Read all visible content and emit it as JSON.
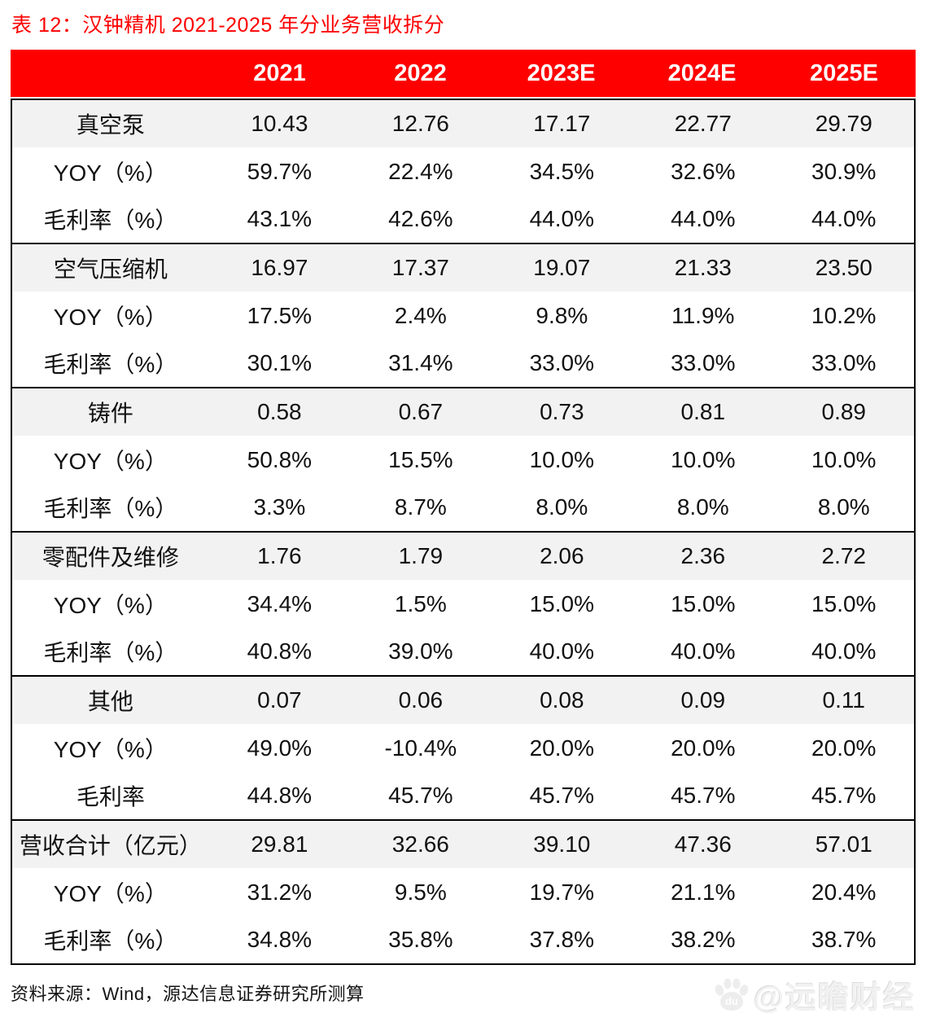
{
  "title": "表 12：汉钟精机 2021-2025 年分业务营收拆分",
  "source_note": "资料来源：Wind，源达信息证券研究所测算",
  "watermark": {
    "icon": "baidu-paw-icon",
    "handle": "@远瞻财经"
  },
  "colors": {
    "accent_red": "#fe0000",
    "header_text": "#ffffff",
    "category_row_bg": "#f2f2f2",
    "body_text": "#111111",
    "border": "#000000",
    "watermark_gray": "#f1f1f1"
  },
  "chart_data": {
    "type": "table",
    "title": "汉钟精机 2021-2025 年分业务营收拆分",
    "columns": [
      "2021",
      "2022",
      "2023E",
      "2024E",
      "2025E"
    ],
    "blocks": [
      {
        "rows": [
          {
            "label": "真空泵",
            "category": true,
            "values": [
              "10.43",
              "12.76",
              "17.17",
              "22.77",
              "29.79"
            ]
          },
          {
            "label": "YOY（%）",
            "category": false,
            "values": [
              "59.7%",
              "22.4%",
              "34.5%",
              "32.6%",
              "30.9%"
            ]
          },
          {
            "label": "毛利率（%）",
            "category": false,
            "values": [
              "43.1%",
              "42.6%",
              "44.0%",
              "44.0%",
              "44.0%"
            ]
          }
        ]
      },
      {
        "rows": [
          {
            "label": "空气压缩机",
            "category": true,
            "values": [
              "16.97",
              "17.37",
              "19.07",
              "21.33",
              "23.50"
            ]
          },
          {
            "label": "YOY（%）",
            "category": false,
            "values": [
              "17.5%",
              "2.4%",
              "9.8%",
              "11.9%",
              "10.2%"
            ]
          },
          {
            "label": "毛利率（%）",
            "category": false,
            "values": [
              "30.1%",
              "31.4%",
              "33.0%",
              "33.0%",
              "33.0%"
            ]
          }
        ]
      },
      {
        "rows": [
          {
            "label": "铸件",
            "category": true,
            "values": [
              "0.58",
              "0.67",
              "0.73",
              "0.81",
              "0.89"
            ]
          },
          {
            "label": "YOY（%）",
            "category": false,
            "values": [
              "50.8%",
              "15.5%",
              "10.0%",
              "10.0%",
              "10.0%"
            ]
          },
          {
            "label": "毛利率（%）",
            "category": false,
            "values": [
              "3.3%",
              "8.7%",
              "8.0%",
              "8.0%",
              "8.0%"
            ]
          }
        ]
      },
      {
        "rows": [
          {
            "label": "零配件及维修",
            "category": true,
            "values": [
              "1.76",
              "1.79",
              "2.06",
              "2.36",
              "2.72"
            ]
          },
          {
            "label": "YOY（%）",
            "category": false,
            "values": [
              "34.4%",
              "1.5%",
              "15.0%",
              "15.0%",
              "15.0%"
            ]
          },
          {
            "label": "毛利率（%）",
            "category": false,
            "values": [
              "40.8%",
              "39.0%",
              "40.0%",
              "40.0%",
              "40.0%"
            ]
          }
        ]
      },
      {
        "rows": [
          {
            "label": "其他",
            "category": true,
            "values": [
              "0.07",
              "0.06",
              "0.08",
              "0.09",
              "0.11"
            ]
          },
          {
            "label": "YOY（%）",
            "category": false,
            "values": [
              "49.0%",
              "-10.4%",
              "20.0%",
              "20.0%",
              "20.0%"
            ]
          },
          {
            "label": "毛利率",
            "category": false,
            "values": [
              "44.8%",
              "45.7%",
              "45.7%",
              "45.7%",
              "45.7%"
            ]
          }
        ]
      },
      {
        "rows": [
          {
            "label": "营收合计（亿元）",
            "category": true,
            "values": [
              "29.81",
              "32.66",
              "39.10",
              "47.36",
              "57.01"
            ]
          },
          {
            "label": "YOY（%）",
            "category": false,
            "values": [
              "31.2%",
              "9.5%",
              "19.7%",
              "21.1%",
              "20.4%"
            ]
          },
          {
            "label": "毛利率（%）",
            "category": false,
            "values": [
              "34.8%",
              "35.8%",
              "37.8%",
              "38.2%",
              "38.7%"
            ]
          }
        ]
      }
    ]
  }
}
